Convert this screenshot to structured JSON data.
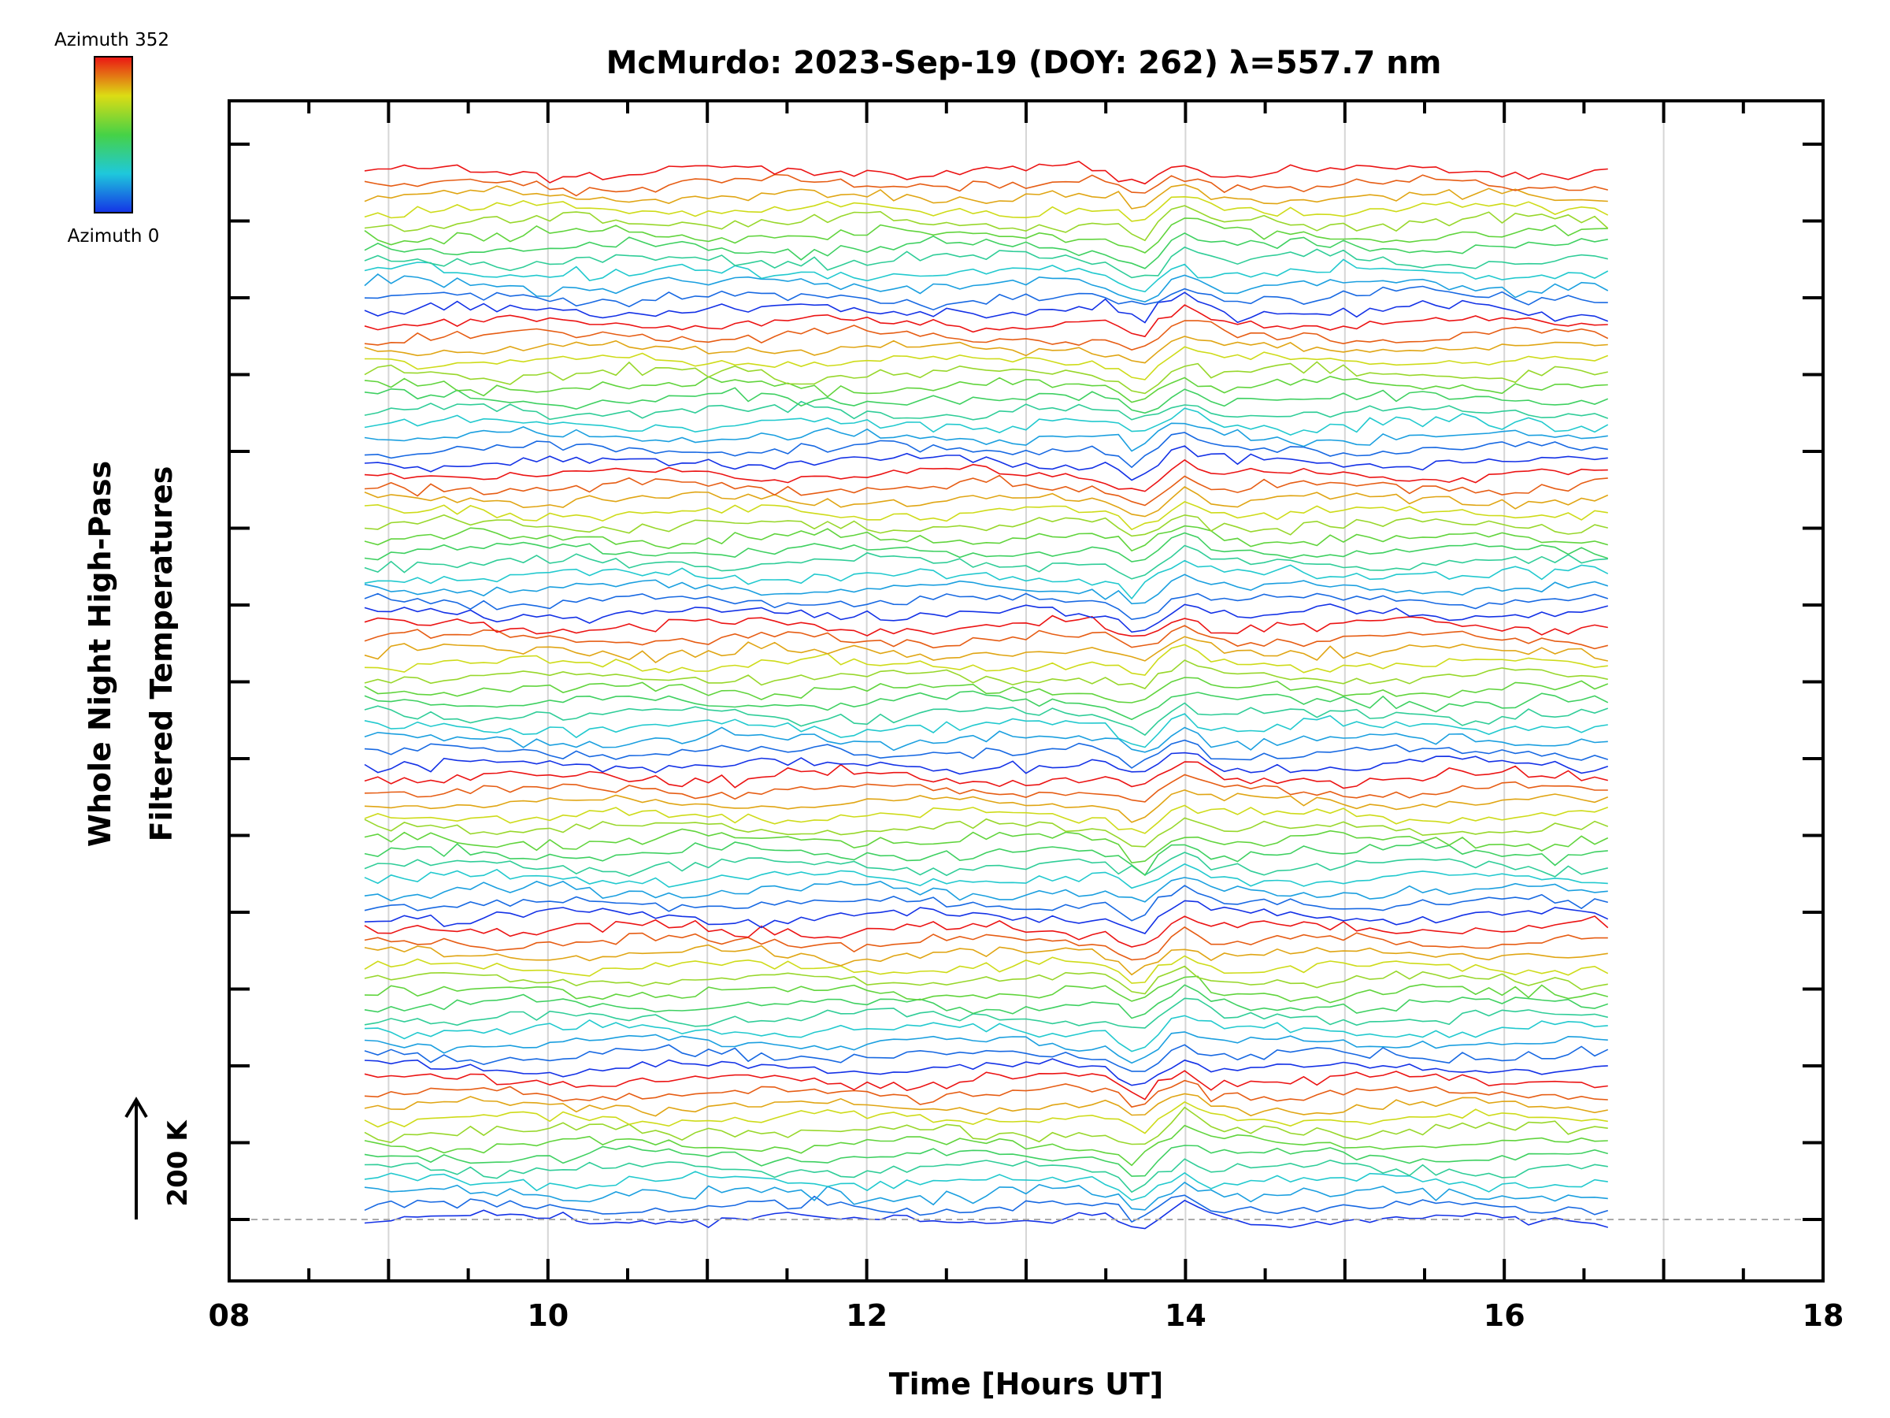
{
  "chart_data": {
    "type": "line",
    "title": "McMurdo: 2023-Sep-19 (DOY: 262) λ=557.7 nm",
    "xlabel": "Time [Hours UT]",
    "ylabel_line1": "Whole Night High-Pass",
    "ylabel_line2": "Filtered Temperatures",
    "xlim": [
      8,
      18
    ],
    "x_tick_labels": [
      "08",
      "10",
      "12",
      "14",
      "16",
      "18"
    ],
    "x_tick_values": [
      8,
      10,
      12,
      14,
      16,
      18
    ],
    "x_gridlines": [
      9,
      10,
      11,
      12,
      13,
      14,
      15,
      16,
      17
    ],
    "data_time_range": [
      8.85,
      16.65
    ],
    "scale_bar_label": "200 K",
    "colorbar": {
      "top_label": "Azimuth 352",
      "bottom_label": "Azimuth 0",
      "min_azimuth": 0,
      "max_azimuth": 352,
      "colormap": "rainbow (blue-cyan-green-yellow-red)"
    },
    "baseline_dashed": true,
    "event_hour": 13.7,
    "series_groups": 7,
    "series_per_group": 12,
    "series_count": 84
  }
}
